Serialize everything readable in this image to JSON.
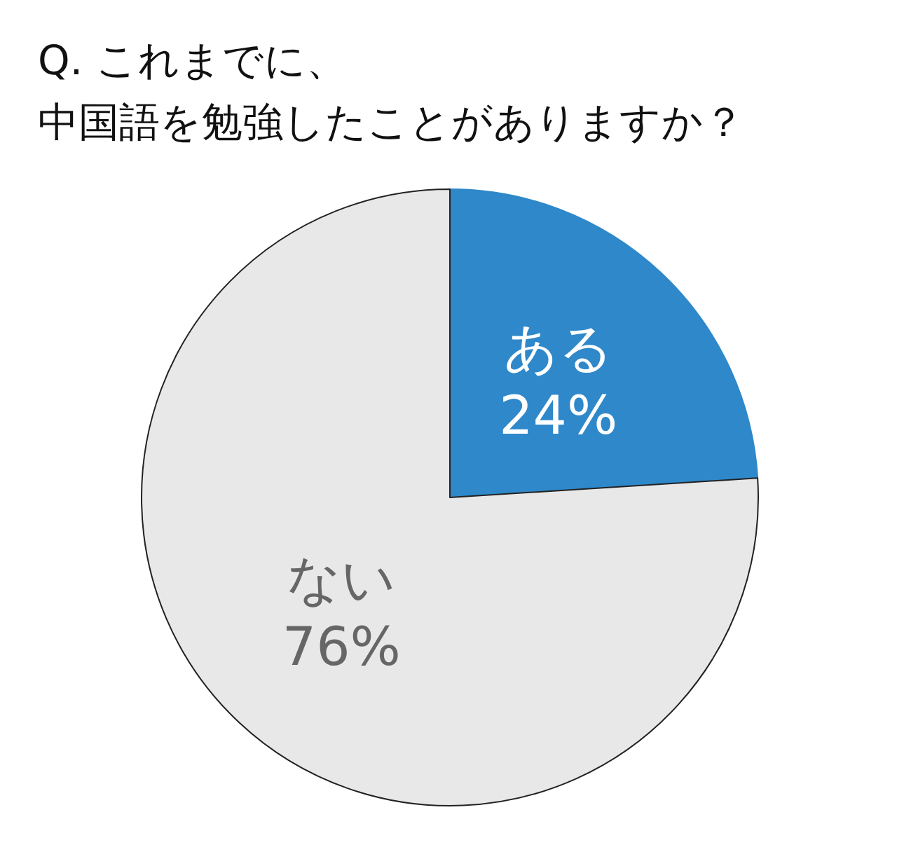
{
  "chart_data": {
    "type": "pie",
    "title": "Q. これまでに、中国語を勉強したことがありますか？",
    "categories": [
      "ある",
      "ない"
    ],
    "values": [
      24,
      76
    ],
    "value_labels": [
      "24%",
      "76%"
    ],
    "colors": [
      "#2e88c9",
      "#e8e8e8"
    ]
  }
}
